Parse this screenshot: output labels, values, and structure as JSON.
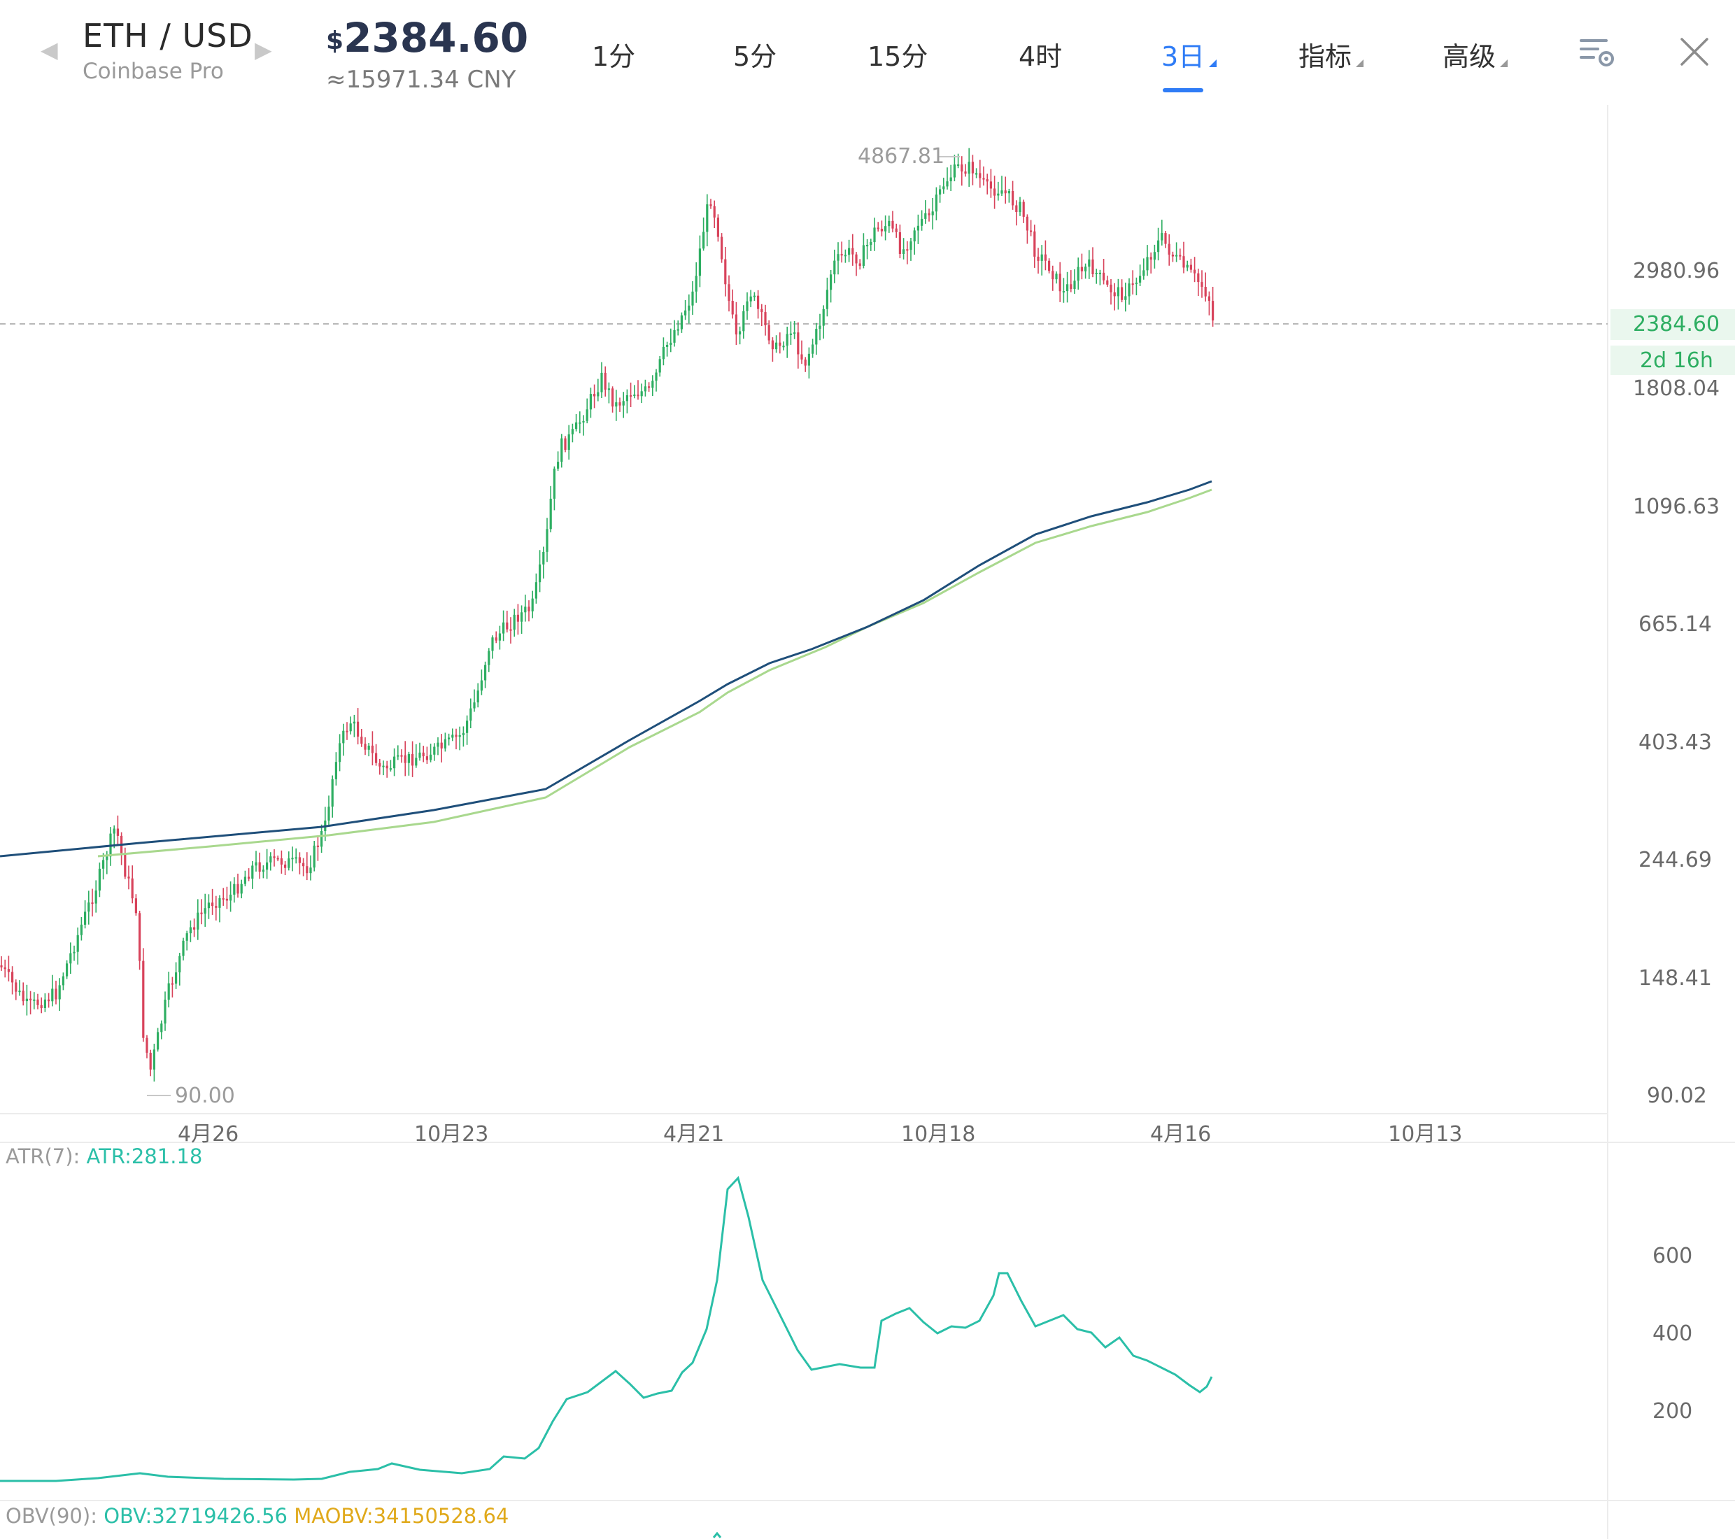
{
  "header": {
    "pair": "ETH / USD",
    "exchange": "Coinbase Pro",
    "currency_symbol": "$",
    "price": "2384.60",
    "cny": "≈15971.34 CNY",
    "tabs": [
      {
        "label": "1分",
        "active": false,
        "dropdown": false
      },
      {
        "label": "5分",
        "active": false,
        "dropdown": false
      },
      {
        "label": "15分",
        "active": false,
        "dropdown": false
      },
      {
        "label": "4时",
        "active": false,
        "dropdown": false
      },
      {
        "label": "3日",
        "active": true,
        "dropdown": true
      },
      {
        "label": "指标",
        "active": false,
        "dropdown": true
      },
      {
        "label": "高级",
        "active": false,
        "dropdown": true
      }
    ],
    "icons": {
      "prev": "chevron-left-icon",
      "next": "chevron-right-icon",
      "settings": "chart-settings-icon",
      "close": "close-icon"
    }
  },
  "chart": {
    "y_axis_labels": [
      "2980.96",
      "1808.04",
      "1096.63",
      "665.14",
      "403.43",
      "244.69",
      "148.41",
      "90.02"
    ],
    "x_axis_labels": [
      "4月26",
      "10月23",
      "4月21",
      "10月18",
      "4月16",
      "10月13"
    ],
    "high_label": "4867.81",
    "low_label": "90.00",
    "current_price_label": "2384.60",
    "countdown_label": "2d 16h",
    "colors": {
      "up": "#2eae62",
      "down": "#d8435b",
      "ma_long": "#1f4f7a",
      "ma_short": "#a9d88e",
      "accent": "#2f7cf6",
      "atr": "#2bbfa8",
      "maobv": "#e0a91b"
    }
  },
  "atr": {
    "title": "ATR(7):",
    "value": "ATR:281.18",
    "axis_labels": [
      "600",
      "400",
      "200"
    ]
  },
  "obv": {
    "title": "OBV(90):",
    "value": "OBV:32719426.56",
    "ma_value": "MAOBV:34150528.64"
  }
}
